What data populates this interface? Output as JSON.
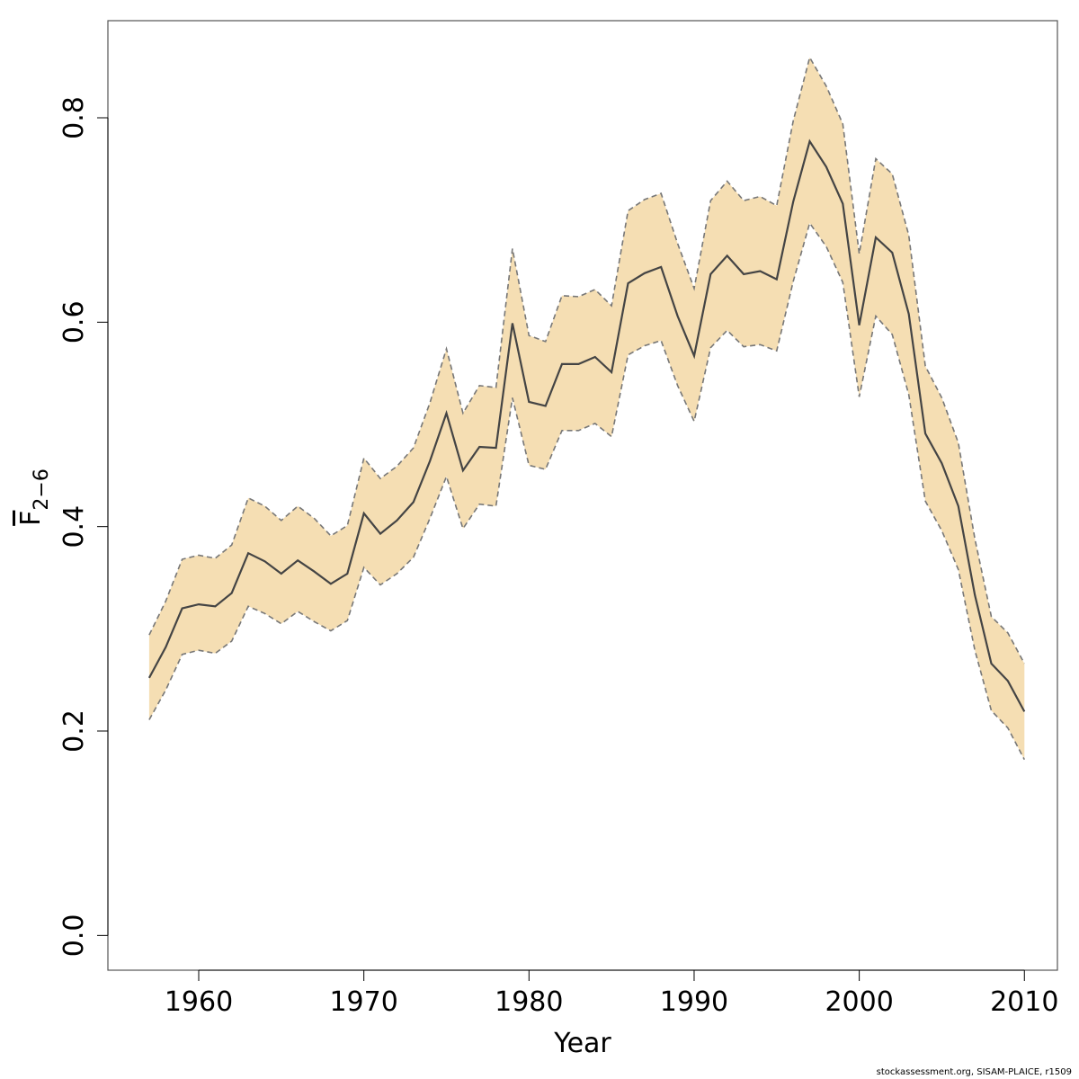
{
  "chart_data": {
    "type": "line",
    "xlabel": "Year",
    "ylabel_base": "F",
    "ylabel_subscript": "2−6",
    "x_ticks": [
      "1960",
      "1970",
      "1980",
      "1990",
      "2000",
      "2010"
    ],
    "y_ticks": [
      "0.0",
      "0.2",
      "0.4",
      "0.6",
      "0.8"
    ],
    "xlim": [
      1954.5,
      2012
    ],
    "ylim": [
      -0.034,
      0.895
    ],
    "colors": {
      "band": "#f5deb3",
      "line": "#444444",
      "bounds": "#777777",
      "frame": "#555555"
    },
    "x": [
      1957,
      1958,
      1959,
      1960,
      1961,
      1962,
      1963,
      1964,
      1965,
      1966,
      1967,
      1968,
      1969,
      1970,
      1971,
      1972,
      1973,
      1974,
      1975,
      1976,
      1977,
      1978,
      1979,
      1980,
      1981,
      1982,
      1983,
      1984,
      1985,
      1986,
      1987,
      1988,
      1989,
      1990,
      1991,
      1992,
      1993,
      1994,
      1995,
      1996,
      1997,
      1998,
      1999,
      2000,
      2001,
      2002,
      2003,
      2004,
      2005,
      2006,
      2007,
      2008,
      2009,
      2010
    ],
    "series": [
      {
        "role": "estimate",
        "values": [
          0.252,
          0.282,
          0.32,
          0.324,
          0.322,
          0.335,
          0.374,
          0.366,
          0.354,
          0.367,
          0.356,
          0.344,
          0.354,
          0.413,
          0.393,
          0.406,
          0.424,
          0.464,
          0.511,
          0.455,
          0.478,
          0.477,
          0.599,
          0.522,
          0.518,
          0.559,
          0.559,
          0.566,
          0.551,
          0.638,
          0.648,
          0.654,
          0.606,
          0.567,
          0.647,
          0.665,
          0.647,
          0.65,
          0.642,
          0.718,
          0.777,
          0.752,
          0.716,
          0.597,
          0.683,
          0.668,
          0.608,
          0.491,
          0.462,
          0.42,
          0.333,
          0.266,
          0.249,
          0.219
        ]
      },
      {
        "role": "upper",
        "values": [
          0.294,
          0.327,
          0.368,
          0.372,
          0.369,
          0.382,
          0.428,
          0.42,
          0.406,
          0.42,
          0.408,
          0.391,
          0.401,
          0.467,
          0.447,
          0.459,
          0.477,
          0.521,
          0.574,
          0.511,
          0.538,
          0.536,
          0.672,
          0.587,
          0.581,
          0.626,
          0.625,
          0.632,
          0.616,
          0.709,
          0.72,
          0.726,
          0.677,
          0.633,
          0.719,
          0.738,
          0.719,
          0.723,
          0.714,
          0.797,
          0.859,
          0.831,
          0.794,
          0.667,
          0.76,
          0.745,
          0.685,
          0.557,
          0.526,
          0.482,
          0.388,
          0.312,
          0.296,
          0.266
        ]
      },
      {
        "role": "lower",
        "values": [
          0.211,
          0.24,
          0.275,
          0.279,
          0.276,
          0.288,
          0.322,
          0.315,
          0.305,
          0.317,
          0.307,
          0.298,
          0.308,
          0.36,
          0.343,
          0.354,
          0.37,
          0.408,
          0.449,
          0.398,
          0.422,
          0.42,
          0.526,
          0.46,
          0.456,
          0.494,
          0.494,
          0.501,
          0.488,
          0.568,
          0.577,
          0.582,
          0.538,
          0.503,
          0.575,
          0.592,
          0.576,
          0.578,
          0.572,
          0.64,
          0.697,
          0.674,
          0.639,
          0.527,
          0.606,
          0.588,
          0.529,
          0.425,
          0.396,
          0.358,
          0.279,
          0.22,
          0.203,
          0.172
        ]
      }
    ]
  },
  "footer": {
    "credit": "stockassessment.org, SISAM-PLAICE, r1509"
  }
}
